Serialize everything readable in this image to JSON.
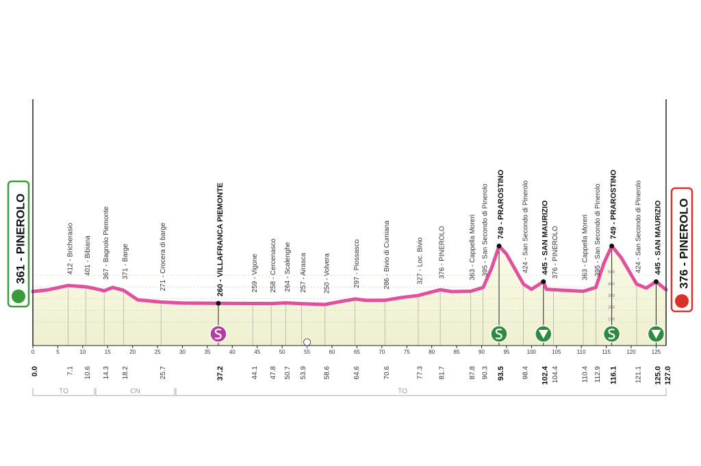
{
  "chart_data": {
    "type": "area",
    "color": "#e0509e",
    "fill": "#f7f6de",
    "xlim": [
      0,
      127
    ],
    "ylim": [
      -100,
      2000
    ],
    "xticks": [
      0,
      5,
      10,
      15,
      20,
      25,
      30,
      35,
      40,
      45,
      50,
      55,
      60,
      65,
      70,
      75,
      80,
      85,
      90,
      95,
      100,
      105,
      110,
      115,
      120,
      125
    ],
    "yticks": [
      100,
      200,
      300,
      400,
      500
    ],
    "grid": true,
    "profile": {
      "km": [
        0,
        3,
        7.1,
        10.6,
        12,
        14.3,
        16,
        18.2,
        21,
        25.7,
        30,
        37.2,
        44.1,
        47.8,
        50.7,
        53.9,
        58.6,
        61,
        64.6,
        67,
        70.6,
        74,
        77.3,
        81.7,
        84,
        87.8,
        90.3,
        92,
        93.5,
        95,
        98.4,
        100,
        102.4,
        103,
        104.4,
        107,
        110.4,
        112.9,
        114.5,
        116.1,
        118,
        121.1,
        123,
        125,
        127
      ],
      "elevation": [
        361,
        375,
        412,
        401,
        390,
        367,
        395,
        371,
        290,
        271,
        262,
        260,
        259,
        258,
        264,
        257,
        250,
        270,
        297,
        285,
        286,
        310,
        327,
        376,
        360,
        363,
        395,
        560,
        749,
        680,
        424,
        380,
        445,
        380,
        376,
        370,
        363,
        395,
        600,
        749,
        650,
        424,
        390,
        445,
        376
      ]
    },
    "start": {
      "name": "361 - PINEROLO",
      "km": {
        "value": 0,
        "label": "0.0"
      }
    },
    "finish": {
      "name": "376 - PINEROLO",
      "km": {
        "value": 127,
        "label": "127.0"
      }
    },
    "waypoints": [
      {
        "km": 7.1,
        "name": "412 - Bricherasio"
      },
      {
        "km": 10.6,
        "name": "401 - Bibiana"
      },
      {
        "km": 14.3,
        "name": "367 - Bagnolo Piemonte"
      },
      {
        "km": 18.2,
        "name": "371 - Barge"
      },
      {
        "km": 25.7,
        "name": "271 - Crocera di barge"
      },
      {
        "km": 37.2,
        "name": "260 - VILLAFRANCA PIEMONTE",
        "bold": true
      },
      {
        "km": 44.1,
        "name": "259 - Vigone"
      },
      {
        "km": 47.8,
        "name": "258 - Cercenasco"
      },
      {
        "km": 50.7,
        "name": "264 - Scalenghe"
      },
      {
        "km": 53.9,
        "name": "257 - Airasca"
      },
      {
        "km": 58.6,
        "name": "250 - Volvera"
      },
      {
        "km": 64.6,
        "name": "297 - Piossasco"
      },
      {
        "km": 70.6,
        "name": "286 - Bivio di Cumiana"
      },
      {
        "km": 77.3,
        "name": "327 - Loc. Bivio"
      },
      {
        "km": 81.7,
        "name": "376 - PINEROLO"
      },
      {
        "km": 87.8,
        "name": "363 - Cappella Moreri"
      },
      {
        "km": 90.3,
        "name": "395 - San Secondo di Pinerolo"
      },
      {
        "km": 93.5,
        "name": "749 - PRAROSTINO",
        "bold": true
      },
      {
        "km": 98.4,
        "name": "424 - San Secondo di Pinerolo"
      },
      {
        "km": 102.4,
        "name": "445 - SAN MAURIZIO",
        "bold": true
      },
      {
        "km": 104.4,
        "name": "376 - PINEROLO"
      },
      {
        "km": 110.4,
        "name": "363 - Cappella Moreri"
      },
      {
        "km": 112.9,
        "name": "395 - San Secondo di Pinerolo"
      },
      {
        "km": 116.1,
        "name": "749 - PRAROSTINO",
        "bold": true
      },
      {
        "km": 121.1,
        "name": "424 - San Secondo di Pinerolo"
      },
      {
        "km": {
          "value": 125,
          "label": "125.0"
        },
        "name": "445 - SAN MAURIZIO",
        "bold": true
      }
    ],
    "regions": [
      "TO",
      "CN",
      "TO"
    ]
  }
}
